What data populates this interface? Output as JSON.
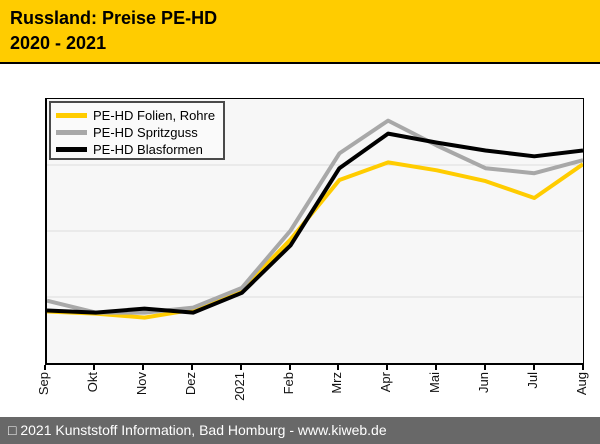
{
  "header": {
    "title_line1": "Russland: Preise PE-HD",
    "title_line2": "2020 - 2021",
    "bg_color": "#FFCC00"
  },
  "legend": {
    "items": [
      {
        "label": "PE-HD Folien, Rohre",
        "color": "#FFCC00"
      },
      {
        "label": "PE-HD Spritzguss",
        "color": "#A8A8A8"
      },
      {
        "label": "PE-HD Blasformen",
        "color": "#000000"
      }
    ]
  },
  "chart_data": {
    "type": "line",
    "title": "Russland: Preise PE-HD 2020 - 2021",
    "categories": [
      "Sep",
      "Okt",
      "Nov",
      "Dez",
      "2021",
      "Feb",
      "Mrz",
      "Apr",
      "Mai",
      "Jun",
      "Jul",
      "Aug"
    ],
    "series": [
      {
        "name": "PE-HD Folien, Rohre",
        "color": "#FFCC00",
        "values": [
          19.5,
          18.7,
          17.2,
          20.2,
          27.7,
          46.8,
          69.3,
          76.0,
          73.0,
          68.9,
          62.5,
          75.3
        ]
      },
      {
        "name": "PE-HD Spritzguss",
        "color": "#A8A8A8",
        "values": [
          23.6,
          19.1,
          19.1,
          21.0,
          28.5,
          50.2,
          79.4,
          91.8,
          82.4,
          73.8,
          71.9,
          76.8
        ]
      },
      {
        "name": "PE-HD Blasformen",
        "color": "#000000",
        "values": [
          19.9,
          19.1,
          20.6,
          19.1,
          26.6,
          44.6,
          73.8,
          86.9,
          83.5,
          80.5,
          78.3,
          80.5
        ]
      }
    ],
    "xlabel": "",
    "ylabel": "",
    "ylim": [
      0,
      100
    ],
    "y_tick_labels_visible": false,
    "gridlines": {
      "horizontal_at": [
        25,
        50,
        75
      ],
      "color": "#DEDEDE"
    },
    "legend_position": "top-left inside plot",
    "note": "No numeric y-axis labels shown in chart; series values are relative levels (0 = x-axis, 100 = plot top) estimated from line positions."
  },
  "footer": {
    "text": "□ 2021 Kunststoff Information, Bad Homburg - www.kiweb.de",
    "bg_color": "#686868"
  }
}
